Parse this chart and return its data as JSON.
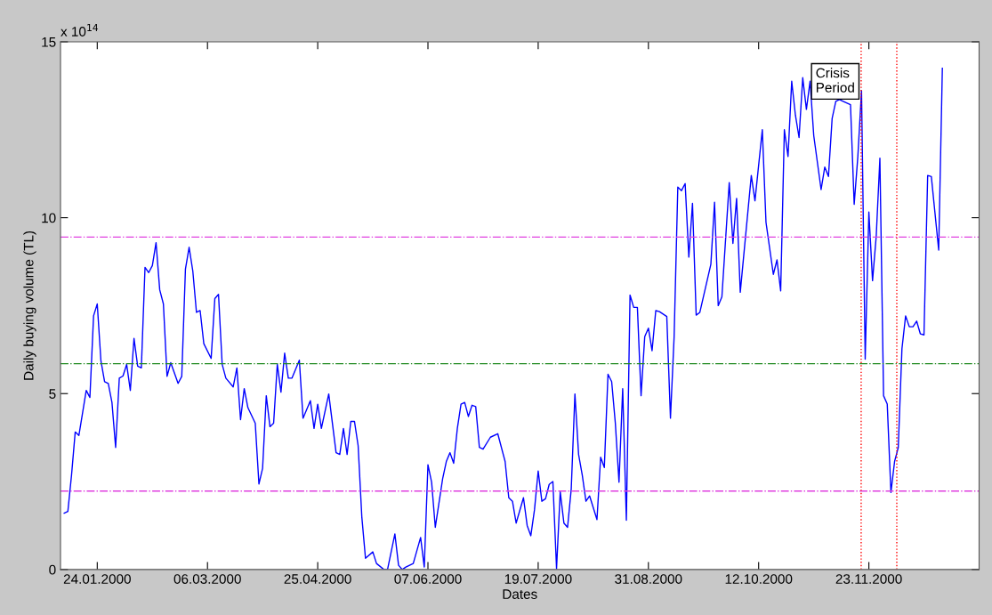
{
  "chart_data": {
    "type": "line",
    "xlabel": "Dates",
    "ylabel": "Daily buying volume (TL)",
    "ylim": [
      0,
      15
    ],
    "yticks": [
      0,
      5,
      10,
      15
    ],
    "grid": false,
    "legend": false,
    "marker": "none",
    "line_style": "solid",
    "categories": [
      null,
      null,
      null,
      null,
      null,
      null,
      null,
      null,
      null,
      null,
      "24.01.2000",
      null,
      null,
      null,
      null,
      null,
      null,
      null,
      null,
      null,
      null,
      null,
      null,
      null,
      null,
      null,
      null,
      null,
      null,
      null,
      null,
      null,
      null,
      null,
      null,
      null,
      null,
      null,
      null,
      null,
      "06.03.2000",
      null,
      null,
      null,
      null,
      null,
      null,
      null,
      null,
      null,
      null,
      null,
      null,
      null,
      null,
      null,
      null,
      null,
      null,
      null,
      null,
      null,
      null,
      null,
      null,
      null,
      null,
      null,
      null,
      null,
      "25.04.2000",
      null,
      null,
      null,
      null,
      null,
      null,
      null,
      null,
      null,
      null,
      null,
      null,
      null,
      null,
      null,
      null,
      null,
      null,
      null,
      null,
      null,
      null,
      null,
      null,
      null,
      null,
      null,
      null,
      null,
      "07.06.2000",
      null,
      null,
      null,
      null,
      null,
      null,
      null,
      null,
      null,
      null,
      null,
      null,
      null,
      null,
      null,
      null,
      null,
      null,
      null,
      null,
      null,
      null,
      null,
      null,
      null,
      null,
      null,
      null,
      null,
      "19.07.2000",
      null,
      null,
      null,
      null,
      null,
      null,
      null,
      null,
      null,
      null,
      null,
      null,
      null,
      null,
      null,
      null,
      null,
      null,
      null,
      null,
      null,
      null,
      null,
      null,
      null,
      null,
      null,
      null,
      null,
      "31.08.2000",
      null,
      null,
      null,
      null,
      null,
      null,
      null,
      null,
      null,
      null,
      null,
      null,
      null,
      null,
      null,
      null,
      null,
      null,
      null,
      null,
      null,
      null,
      null,
      null,
      null,
      null,
      null,
      null,
      null,
      "12.10.2000",
      null,
      null,
      null,
      null,
      null,
      null,
      null,
      null,
      null,
      null,
      null,
      null,
      null,
      null,
      null,
      null,
      null,
      null,
      null,
      null,
      null,
      null,
      null,
      null,
      null,
      null,
      null,
      null,
      null,
      "23.11.2000",
      null,
      null,
      null,
      null,
      null,
      null,
      null,
      null,
      null,
      null,
      null,
      null,
      null,
      null,
      null,
      null,
      null,
      null,
      null,
      null,
      null,
      null,
      null,
      null,
      null,
      null,
      null,
      null,
      null,
      null
    ],
    "series": [
      {
        "color": "#0000ff",
        "values": [
          null,
          1.6,
          1.65,
          2.68,
          3.91,
          3.81,
          null,
          5.09,
          4.89,
          7.21,
          7.55,
          5.93,
          5.34,
          5.29,
          4.75,
          3.47,
          5.44,
          5.5,
          5.83,
          5.09,
          6.57,
          5.78,
          5.73,
          8.59,
          8.44,
          8.64,
          9.29,
          7.95,
          7.55,
          5.49,
          5.88,
          null,
          5.29,
          5.49,
          8.54,
          9.16,
          8.49,
          7.31,
          7.36,
          6.42,
          null,
          6.0,
          7.7,
          7.82,
          5.83,
          5.44,
          null,
          5.19,
          5.73,
          4.26,
          5.14,
          4.6,
          null,
          4.16,
          2.43,
          2.88,
          4.94,
          4.06,
          4.16,
          5.83,
          5.04,
          6.15,
          5.44,
          5.44,
          null,
          5.95,
          4.3,
          null,
          4.8,
          4.01,
          4.7,
          4.01,
          null,
          4.99,
          null,
          3.32,
          3.27,
          4.01,
          3.27,
          4.21,
          4.21,
          3.52,
          1.5,
          0.32,
          null,
          0.5,
          0.17,
          null,
          0.0,
          0.0,
          null,
          1.01,
          0.12,
          0.0,
          0.07,
          null,
          0.17,
          null,
          0.91,
          0.07,
          2.98,
          2.48,
          1.2,
          null,
          2.58,
          3.07,
          3.32,
          3.02,
          4.01,
          4.7,
          4.75,
          4.35,
          4.67,
          4.63,
          3.47,
          3.42,
          null,
          3.76,
          null,
          3.86,
          null,
          3.07,
          2.04,
          1.94,
          1.32,
          null,
          2.04,
          1.25,
          0.96,
          1.7,
          2.8,
          1.94,
          2.01,
          2.42,
          2.5,
          0.02,
          2.21,
          1.32,
          1.2,
          2.29,
          4.99,
          3.27,
          2.68,
          1.94,
          2.09,
          null,
          1.42,
          3.19,
          2.9,
          5.55,
          5.34,
          4.16,
          2.48,
          5.14,
          1.4,
          7.8,
          7.45,
          7.45,
          4.94,
          6.62,
          6.86,
          6.22,
          7.36,
          7.33,
          null,
          7.19,
          4.3,
          6.62,
          10.87,
          10.77,
          10.97,
          8.88,
          10.41,
          7.23,
          7.31,
          null,
          null,
          8.68,
          10.44,
          7.5,
          7.75,
          null,
          11.0,
          9.27,
          10.55,
          7.88,
          null,
          null,
          11.2,
          10.48,
          null,
          12.5,
          9.87,
          null,
          8.39,
          8.8,
          7.92,
          12.5,
          11.74,
          13.88,
          12.92,
          12.28,
          13.98,
          13.08,
          13.88,
          12.33,
          null,
          10.8,
          11.44,
          11.17,
          12.82,
          13.31,
          13.36,
          13.31,
          null,
          13.21,
          10.38,
          11.74,
          13.61,
          5.98,
          10.16,
          8.21,
          9.47,
          11.69,
          4.94,
          4.7,
          2.19,
          3.07,
          3.47,
          6.27,
          7.21,
          6.9,
          6.9,
          7.06,
          6.7,
          6.67,
          11.2,
          11.17,
          null,
          9.08,
          14.25,
          null,
          null,
          null,
          null,
          null,
          null,
          null,
          null,
          null,
          null
        ]
      }
    ],
    "ref_lines": [
      {
        "axis": "y",
        "value": 9.45,
        "color": "#e040e0",
        "line_style": "dashdot"
      },
      {
        "axis": "y",
        "value": 5.85,
        "color": "#228b22",
        "line_style": "dashdot"
      },
      {
        "axis": "y",
        "value": 2.23,
        "color": "#e040e0",
        "line_style": "dashdot"
      }
    ],
    "annotations": [
      "Crisis\nPeriod",
      "x 10$^{14}$"
    ]
  }
}
